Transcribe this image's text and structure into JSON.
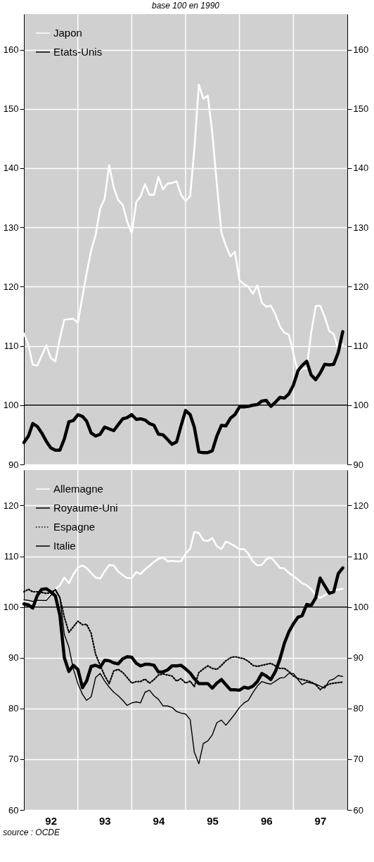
{
  "chart_data": [
    {
      "type": "line",
      "subtitle": "base 100 en 1990",
      "xlim": [
        "1992",
        "1998"
      ],
      "xticks": [
        {
          "value": "1993",
          "label": null
        },
        {
          "value": "1994",
          "label": null
        },
        {
          "value": "1995",
          "label": null
        },
        {
          "value": "1996",
          "label": null
        },
        {
          "value": "1997",
          "label": null
        }
      ],
      "ylim": [
        90,
        166
      ],
      "yticks": [
        90,
        100,
        110,
        120,
        130,
        140,
        150,
        160
      ],
      "y2lim": [
        90,
        166
      ],
      "y2ticks": [
        90,
        100,
        110,
        120,
        130,
        140,
        150,
        160
      ],
      "grid": true,
      "legend": "top left",
      "tick_labels": "y",
      "ref_lines": [
        {
          "axis": "y",
          "value": 100
        }
      ],
      "x": [
        "1992-01",
        "1992-02",
        "1992-03",
        "1992-04",
        "1992-05",
        "1992-06",
        "1992-07",
        "1992-08",
        "1992-09",
        "1992-10",
        "1992-11",
        "1992-12",
        "1993-01",
        "1993-02",
        "1993-03",
        "1993-04",
        "1993-05",
        "1993-06",
        "1993-07",
        "1993-08",
        "1993-09",
        "1993-10",
        "1993-11",
        "1993-12",
        "1994-01",
        "1994-02",
        "1994-03",
        "1994-04",
        "1994-05",
        "1994-06",
        "1994-07",
        "1994-08",
        "1994-09",
        "1994-10",
        "1994-11",
        "1994-12",
        "1995-01",
        "1995-02",
        "1995-03",
        "1995-04",
        "1995-05",
        "1995-06",
        "1995-07",
        "1995-08",
        "1995-09",
        "1995-10",
        "1995-11",
        "1995-12",
        "1996-01",
        "1996-02",
        "1996-03",
        "1996-04",
        "1996-05",
        "1996-06",
        "1996-07",
        "1996-08",
        "1996-09",
        "1996-10",
        "1996-11",
        "1996-12",
        "1997-01",
        "1997-02",
        "1997-03",
        "1997-04",
        "1997-05",
        "1997-06",
        "1997-07",
        "1997-08",
        "1997-09",
        "1997-10",
        "1997-11",
        "1997-12"
      ],
      "series": [
        {
          "name": "Japon",
          "color": "#ffffff",
          "x": [
            "1992-01",
            "1992-02",
            "1992-03",
            "1992-04",
            "1992-05",
            "1992-06",
            "1992-07",
            "1992-08",
            "1992-09",
            "1992-10",
            "1992-12",
            "1993-01",
            "1993-02",
            "1993-03",
            "1993-04",
            "1993-05",
            "1993-06",
            "1993-07",
            "1993-08",
            "1993-09",
            "1993-10",
            "1993-11",
            "1993-12",
            "1994-01",
            "1994-02",
            "1994-03",
            "1994-04",
            "1994-05",
            "1994-06",
            "1994-07",
            "1994-08",
            "1994-09",
            "1994-10",
            "1994-11",
            "1994-12",
            "1995-01",
            "1995-02",
            "1995-03",
            "1995-04",
            "1995-05",
            "1995-06",
            "1995-07",
            "1995-08",
            "1995-09",
            "1995-10",
            "1995-11",
            "1995-12",
            "1996-01",
            "1996-02",
            "1996-03",
            "1996-04",
            "1996-05",
            "1996-06",
            "1996-07",
            "1996-08",
            "1996-09",
            "1996-10",
            "1996-11",
            "1996-12",
            "1997-01",
            "1997-02",
            "1997-03",
            "1997-04",
            "1997-05",
            "1997-06",
            "1997-07",
            "1997-08",
            "1997-09",
            "1997-10",
            "1997-11",
            "1997-12"
          ],
          "values": [
            112.1,
            110.1,
            106.8,
            106.7,
            108.4,
            110.1,
            108.0,
            107.4,
            111.3,
            114.4,
            114.6,
            113.9,
            118.4,
            122.2,
            126.1,
            128.7,
            133.2,
            134.8,
            140.5,
            136.7,
            134.6,
            133.8,
            131.0,
            129.0,
            134.3,
            135.2,
            137.3,
            135.5,
            135.5,
            138.5,
            136.4,
            137.4,
            137.5,
            137.8,
            135.5,
            134.4,
            135.3,
            143.1,
            154.1,
            151.7,
            152.2,
            145.9,
            137.3,
            129.1,
            126.9,
            125.1,
            125.9,
            121.1,
            120.4,
            120.0,
            118.8,
            120.2,
            117.3,
            116.6,
            116.8,
            115.3,
            113.3,
            112.2,
            111.9,
            108.7,
            105.4,
            106.2,
            106.2,
            112.2,
            116.7,
            116.8,
            114.9,
            112.5,
            112.0,
            109.4,
            110.3
          ]
        },
        {
          "name": "Etats-Unis",
          "color": "#000000",
          "values": [
            93.7,
            94.8,
            96.9,
            96.4,
            95.3,
            93.9,
            92.8,
            92.4,
            92.4,
            94.3,
            97.2,
            97.4,
            98.4,
            98.1,
            97.3,
            95.3,
            94.8,
            95.1,
            96.3,
            96.0,
            95.7,
            96.7,
            97.7,
            97.9,
            98.4,
            97.6,
            97.7,
            97.5,
            96.9,
            96.6,
            95.1,
            95.0,
            94.2,
            93.4,
            93.8,
            96.5,
            99.1,
            98.4,
            96.3,
            92.1,
            92.0,
            92.0,
            92.3,
            94.8,
            96.6,
            96.5,
            97.8,
            98.4,
            99.7,
            99.7,
            99.8,
            100.0,
            100.1,
            100.7,
            100.8,
            99.8,
            100.5,
            101.3,
            101.2,
            101.9,
            103.4,
            105.8,
            106.7,
            107.4,
            105.1,
            104.3,
            105.4,
            106.9,
            106.8,
            106.9,
            108.9,
            112.4
          ]
        }
      ]
    },
    {
      "type": "line",
      "xlim": [
        "1992",
        "1998"
      ],
      "xticks": [
        {
          "value": "1992-07",
          "label": "92"
        },
        {
          "value": "1993",
          "label": null
        },
        {
          "value": "1993-07",
          "label": "93"
        },
        {
          "value": "1994",
          "label": null
        },
        {
          "value": "1994-07",
          "label": "94"
        },
        {
          "value": "1995",
          "label": null
        },
        {
          "value": "1995-07",
          "label": "95"
        },
        {
          "value": "1996",
          "label": null
        },
        {
          "value": "1996-07",
          "label": "96"
        },
        {
          "value": "1997",
          "label": null
        },
        {
          "value": "1997-07",
          "label": "97"
        }
      ],
      "ylim": [
        60,
        127
      ],
      "yticks": [
        60,
        70,
        80,
        90,
        100,
        110,
        120
      ],
      "y2lim": [
        60,
        127
      ],
      "y2ticks": [
        60,
        70,
        80,
        90,
        100,
        110,
        120
      ],
      "grid": true,
      "legend": "top left",
      "ref_lines": [
        {
          "axis": "y",
          "value": 100
        }
      ],
      "annotations": [
        "source : OCDE"
      ],
      "x": [
        "1992-01",
        "1992-02",
        "1992-03",
        "1992-04",
        "1992-05",
        "1992-06",
        "1992-07",
        "1992-08",
        "1992-09",
        "1992-10",
        "1992-11",
        "1992-12",
        "1993-01",
        "1993-02",
        "1993-03",
        "1993-04",
        "1993-05",
        "1993-06",
        "1993-07",
        "1993-08",
        "1993-09",
        "1993-10",
        "1993-11",
        "1993-12",
        "1994-01",
        "1994-02",
        "1994-03",
        "1994-04",
        "1994-05",
        "1994-06",
        "1994-07",
        "1994-08",
        "1994-09",
        "1994-10",
        "1994-11",
        "1994-12",
        "1995-01",
        "1995-02",
        "1995-03",
        "1995-04",
        "1995-05",
        "1995-06",
        "1995-07",
        "1995-08",
        "1995-09",
        "1995-10",
        "1995-11",
        "1995-12",
        "1996-01",
        "1996-02",
        "1996-03",
        "1996-04",
        "1996-05",
        "1996-06",
        "1996-07",
        "1996-08",
        "1996-09",
        "1996-10",
        "1996-11",
        "1996-12",
        "1997-01",
        "1997-02",
        "1997-03",
        "1997-04",
        "1997-05",
        "1997-06",
        "1997-07",
        "1997-08",
        "1997-09",
        "1997-10",
        "1997-11",
        "1997-12"
      ],
      "series": [
        {
          "name": "Allemagne",
          "color": "#ffffff",
          "x": [
            "1992-01",
            "1992-02",
            "1992-03",
            "1992-04",
            "1992-06",
            "1992-07",
            "1992-08",
            "1992-09",
            "1992-10",
            "1992-11",
            "1992-12",
            "1993-01",
            "1993-02",
            "1993-03",
            "1993-04",
            "1993-05",
            "1993-06",
            "1993-07",
            "1993-08",
            "1993-09",
            "1993-10",
            "1993-11",
            "1993-12",
            "1994-01",
            "1994-02",
            "1994-03",
            "1994-04",
            "1994-05",
            "1994-06",
            "1994-07",
            "1994-08",
            "1994-09",
            "1994-10",
            "1994-11",
            "1994-12",
            "1995-01",
            "1995-02",
            "1995-03",
            "1995-04",
            "1995-05",
            "1995-06",
            "1995-07",
            "1995-08",
            "1995-09",
            "1995-10",
            "1995-11",
            "1995-12",
            "1996-01",
            "1996-02",
            "1996-03",
            "1996-04",
            "1996-05",
            "1996-06",
            "1996-07",
            "1996-08",
            "1996-09",
            "1996-10",
            "1996-11",
            "1996-12",
            "1997-01",
            "1997-02",
            "1997-03",
            "1997-04",
            "1997-05",
            "1997-06",
            "1997-07",
            "1997-08",
            "1997-09",
            "1997-10",
            "1997-12"
          ],
          "values": [
            101.2,
            101.2,
            100.9,
            101.2,
            101.4,
            102.5,
            103.5,
            104.3,
            105.8,
            104.7,
            106.4,
            107.8,
            108.2,
            107.7,
            106.7,
            105.8,
            105.6,
            107.0,
            108.3,
            108.2,
            107.0,
            106.3,
            105.7,
            105.7,
            106.9,
            106.5,
            107.4,
            108.1,
            108.9,
            109.5,
            109.8,
            109.0,
            109.1,
            109.0,
            109.0,
            110.5,
            111.5,
            114.8,
            114.6,
            113.2,
            113.0,
            113.6,
            112.0,
            111.4,
            112.9,
            112.5,
            112.0,
            111.4,
            111.4,
            110.5,
            109.0,
            108.2,
            108.3,
            109.4,
            109.8,
            108.8,
            107.7,
            107.6,
            106.7,
            106.1,
            105.4,
            104.7,
            104.3,
            103.5,
            102.4,
            101.8,
            102.3,
            102.9,
            103.3,
            103.6
          ]
        },
        {
          "name": "Royaume-Uni",
          "color": "#000000",
          "values": [
            100.6,
            100.4,
            99.8,
            102.3,
            103.5,
            103.6,
            103.0,
            102.2,
            98.4,
            90.0,
            87.3,
            88.5,
            87.7,
            84.1,
            85.4,
            88.3,
            88.5,
            88.1,
            89.5,
            89.4,
            89.0,
            88.8,
            89.8,
            90.2,
            90.1,
            88.9,
            88.4,
            88.7,
            88.7,
            88.5,
            87.2,
            87.2,
            87.6,
            88.4,
            88.4,
            88.5,
            87.8,
            87.0,
            85.9,
            84.9,
            84.9,
            84.9,
            84.0,
            85.0,
            85.7,
            84.7,
            83.7,
            83.7,
            83.6,
            84.2,
            84.0,
            84.4,
            85.3,
            86.9,
            86.4,
            85.7,
            87.3,
            89.7,
            92.9,
            95.1,
            96.7,
            98.0,
            98.3,
            100.5,
            100.3,
            101.8,
            105.7,
            104.2,
            102.7,
            103.0,
            106.6,
            107.7
          ]
        },
        {
          "name": "Espagne",
          "color": "#000000",
          "line_style": "dotted",
          "x": [
            "1992-01",
            "1992-02",
            "1992-03",
            "1992-04",
            "1992-06",
            "1992-07",
            "1992-08",
            "1992-09",
            "1992-10",
            "1992-11",
            "1992-12",
            "1993-01",
            "1993-02",
            "1993-03",
            "1993-04",
            "1993-05",
            "1993-06",
            "1993-07",
            "1993-08",
            "1993-09",
            "1993-10",
            "1993-11",
            "1993-12",
            "1994-01",
            "1994-02",
            "1994-03",
            "1994-04",
            "1994-05",
            "1994-06",
            "1994-07",
            "1994-08",
            "1994-09",
            "1994-10",
            "1994-11",
            "1994-12",
            "1995-01",
            "1995-02",
            "1995-03",
            "1995-04",
            "1995-05",
            "1995-06",
            "1995-07",
            "1995-08",
            "1995-09",
            "1995-10",
            "1995-11",
            "1995-12",
            "1996-01",
            "1996-02",
            "1996-03",
            "1996-04",
            "1996-05",
            "1996-06",
            "1996-07",
            "1996-08",
            "1996-09",
            "1996-10",
            "1996-11",
            "1996-12",
            "1997-01",
            "1997-02",
            "1997-03",
            "1997-04",
            "1997-05",
            "1997-06",
            "1997-07",
            "1997-08",
            "1997-09",
            "1997-10",
            "1997-12"
          ],
          "values": [
            103.0,
            103.5,
            103.0,
            103.0,
            102.7,
            102.8,
            103.4,
            101.8,
            98.0,
            95.0,
            96.1,
            97.2,
            96.5,
            96.6,
            94.8,
            90.7,
            88.5,
            86.5,
            84.9,
            87.4,
            87.7,
            87.1,
            86.1,
            85.0,
            85.3,
            85.3,
            85.8,
            85.0,
            85.7,
            86.6,
            86.8,
            86.6,
            86.4,
            85.4,
            85.9,
            85.0,
            85.4,
            84.3,
            87.1,
            87.8,
            88.4,
            87.9,
            87.7,
            88.5,
            89.4,
            90.0,
            90.2,
            90.0,
            89.8,
            89.3,
            88.5,
            88.3,
            88.5,
            88.7,
            88.9,
            88.4,
            87.9,
            87.9,
            87.3,
            86.4,
            85.9,
            85.7,
            85.5,
            85.2,
            84.7,
            83.7,
            84.4,
            84.8,
            85.0,
            85.2
          ]
        },
        {
          "name": "Italie",
          "color": "#000000",
          "x": [
            "1992-01",
            "1992-02",
            "1992-03",
            "1992-04",
            "1992-06",
            "1992-07",
            "1992-08",
            "1992-09",
            "1992-10",
            "1992-11",
            "1992-12",
            "1993-01",
            "1993-02",
            "1993-03",
            "1993-04",
            "1993-05",
            "1993-06",
            "1993-07",
            "1993-08",
            "1993-09",
            "1993-10",
            "1993-11",
            "1993-12",
            "1994-01",
            "1994-02",
            "1994-03",
            "1994-04",
            "1994-05",
            "1994-06",
            "1994-07",
            "1994-08",
            "1994-09",
            "1994-10",
            "1994-11",
            "1994-12",
            "1995-01",
            "1995-02",
            "1995-03",
            "1995-04",
            "1995-05",
            "1995-06",
            "1995-07",
            "1995-08",
            "1995-09",
            "1995-10",
            "1995-11",
            "1995-12",
            "1996-01",
            "1996-02",
            "1996-03",
            "1996-04",
            "1996-05",
            "1996-06",
            "1996-07",
            "1996-08",
            "1996-09",
            "1996-10",
            "1996-11",
            "1996-12",
            "1997-01",
            "1997-02",
            "1997-03",
            "1997-04",
            "1997-05",
            "1997-06",
            "1997-07",
            "1997-08",
            "1997-09",
            "1997-10",
            "1997-11",
            "1997-12"
          ],
          "values": [
            101.4,
            101.3,
            101.1,
            101.3,
            101.3,
            102.3,
            103.5,
            101.9,
            94.6,
            92.1,
            87.8,
            84.9,
            82.8,
            81.6,
            82.3,
            86.1,
            86.9,
            85.4,
            84.2,
            83.2,
            82.5,
            81.6,
            80.6,
            81.1,
            81.3,
            81.1,
            83.2,
            83.6,
            82.5,
            81.8,
            80.5,
            80.5,
            80.2,
            79.4,
            79.1,
            78.9,
            77.8,
            71.4,
            69.1,
            73.1,
            73.6,
            74.8,
            77.2,
            77.7,
            76.7,
            77.8,
            78.9,
            80.2,
            81.1,
            81.6,
            83.1,
            84.4,
            85.3,
            85.0,
            84.8,
            85.4,
            86.0,
            86.1,
            86.9,
            86.9,
            85.7,
            84.7,
            85.2,
            85.0,
            84.8,
            84.4,
            84.0,
            85.5,
            85.8,
            86.5,
            86.3
          ]
        }
      ]
    }
  ]
}
